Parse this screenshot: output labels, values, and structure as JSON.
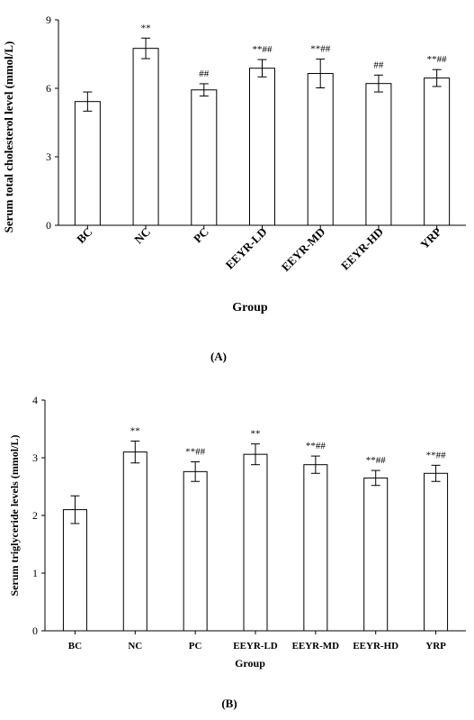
{
  "chart_data": [
    {
      "type": "bar",
      "panel_label": "(A)",
      "categories": [
        "BC",
        "NC",
        "PC",
        "EEYR-LD",
        "EEYR-MD",
        "EEYR-HD",
        "YRP"
      ],
      "values": [
        5.42,
        7.75,
        5.93,
        6.88,
        6.65,
        6.21,
        6.45
      ],
      "errors": [
        0.42,
        0.45,
        0.27,
        0.38,
        0.63,
        0.37,
        0.37
      ],
      "significance": [
        "",
        "**",
        "##",
        "**##",
        "**##",
        "##",
        "**##"
      ],
      "xlabel": "Group",
      "ylabel": "Serum total cholesterol level (mmol/L)",
      "ylim": [
        0,
        9
      ],
      "yticks": [
        "0",
        "3",
        "6",
        "9"
      ],
      "grid": false
    },
    {
      "type": "bar",
      "panel_label": "(B)",
      "categories": [
        "BC",
        "NC",
        "PC",
        "EEYR-LD",
        "EEYR-MD",
        "EEYR-HD",
        "YRP"
      ],
      "values": [
        2.1,
        3.1,
        2.76,
        3.06,
        2.88,
        2.65,
        2.73
      ],
      "errors": [
        0.24,
        0.19,
        0.17,
        0.18,
        0.15,
        0.13,
        0.14
      ],
      "significance": [
        "",
        "**",
        "**##",
        "**",
        "**##",
        "**##",
        "**##"
      ],
      "xlabel": "Group",
      "ylabel": "Serum triglyceride levels (mmol/L)",
      "ylim": [
        0,
        4
      ],
      "yticks": [
        "0",
        "1",
        "2",
        "3",
        "4"
      ],
      "grid": false
    }
  ]
}
